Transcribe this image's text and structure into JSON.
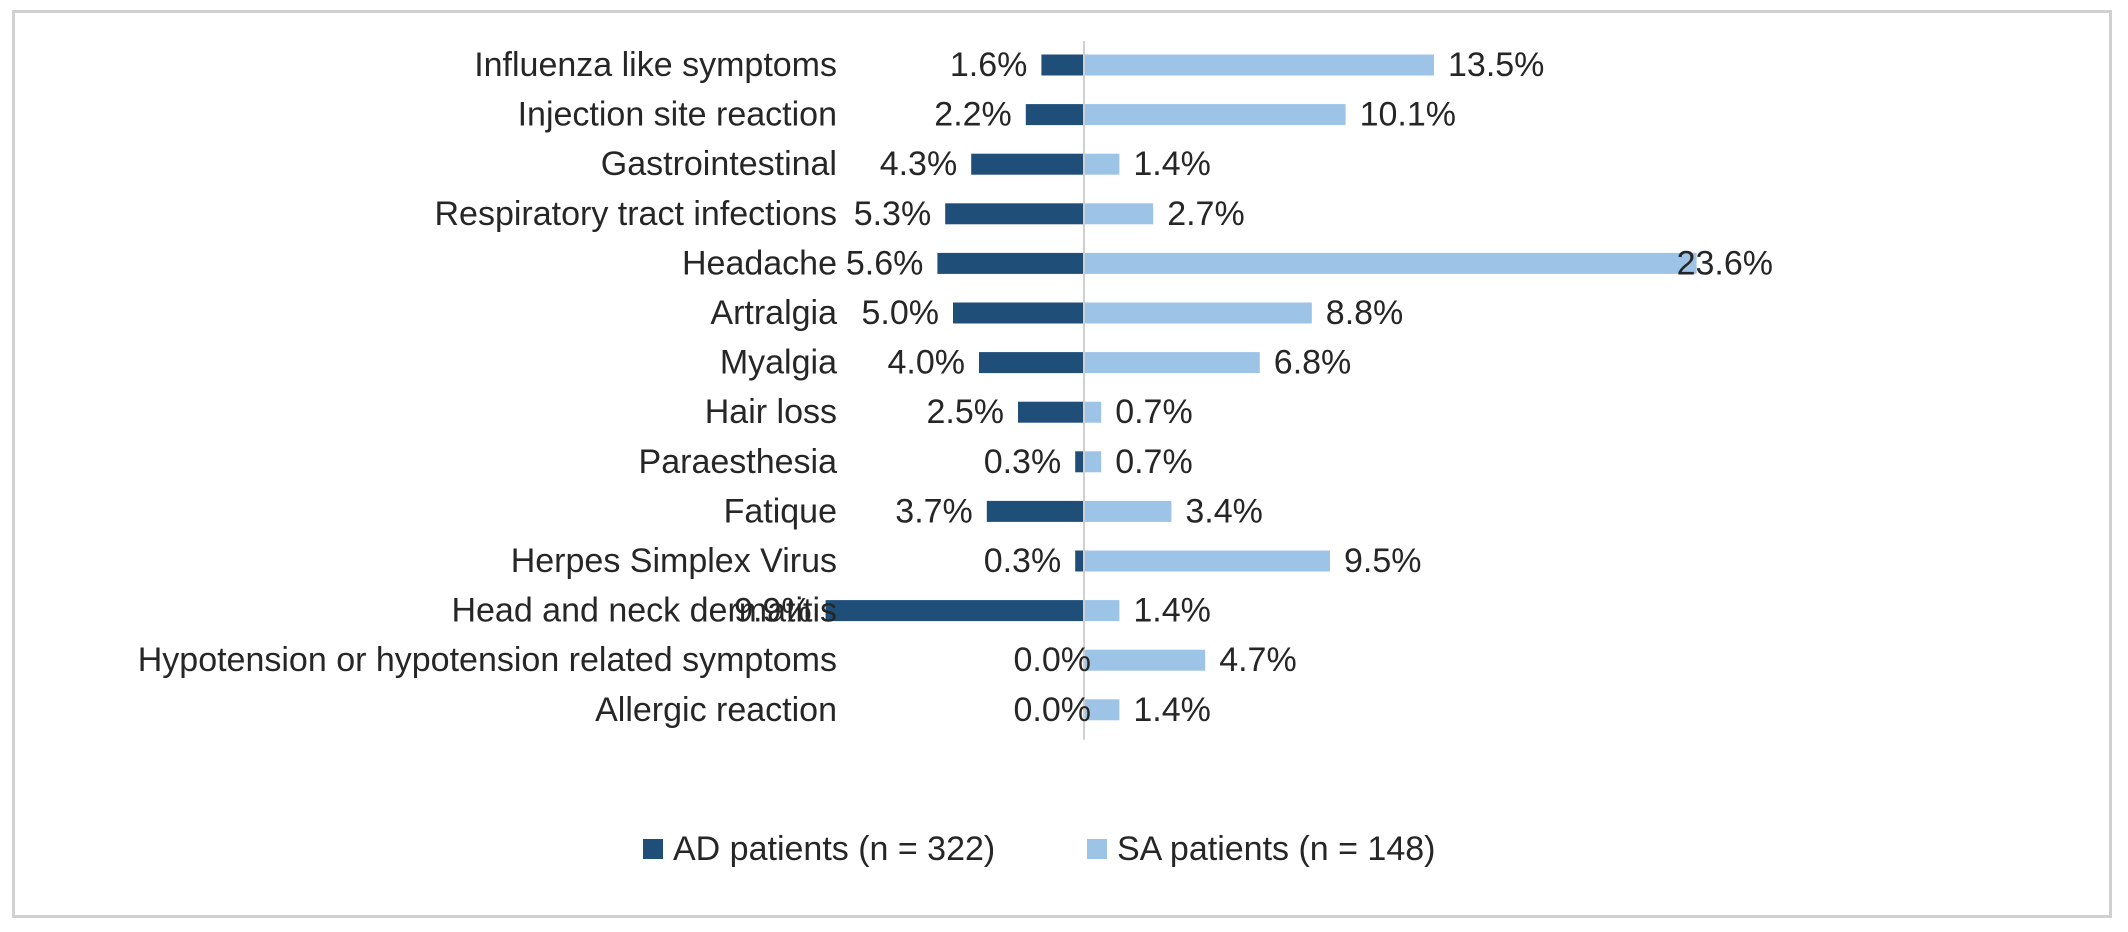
{
  "chart_data": {
    "type": "bar",
    "orientation": "horizontal-diverging",
    "categories": [
      "Influenza like symptoms",
      "Injection site reaction",
      "Gastrointestinal",
      "Respiratory tract infections",
      "Headache",
      "Artralgia",
      "Myalgia",
      "Hair loss",
      "Paraesthesia",
      "Fatique",
      "Herpes Simplex Virus",
      "Head and neck dermatitis",
      "Hypotension or hypotension related symptoms",
      "Allergic reaction"
    ],
    "series": [
      {
        "name": "AD patients (n = 322)",
        "color": "#1f4e79",
        "values": [
          1.6,
          2.2,
          4.3,
          5.3,
          5.6,
          5.0,
          4.0,
          2.5,
          0.3,
          3.7,
          0.3,
          9.9,
          0.0,
          0.0
        ],
        "labels": [
          "1.6%",
          "2.2%",
          "4.3%",
          "5.3%",
          "5.6%",
          "5.0%",
          "4.0%",
          "2.5%",
          "0.3%",
          "3.7%",
          "0.3%",
          "9.9%",
          "0.0%",
          "0.0%"
        ]
      },
      {
        "name": "SA patients (n = 148)",
        "color": "#9dc3e6",
        "values": [
          13.5,
          10.1,
          1.4,
          2.7,
          23.6,
          8.8,
          6.8,
          0.7,
          0.7,
          3.4,
          9.5,
          1.4,
          4.7,
          1.4
        ],
        "labels": [
          "13.5%",
          "10.1%",
          "1.4%",
          "2.7%",
          "23.6%",
          "8.8%",
          "6.8%",
          "0.7%",
          "0.7%",
          "3.4%",
          "9.5%",
          "1.4%",
          "4.7%",
          "1.4%"
        ]
      }
    ],
    "title": "",
    "xlabel": "",
    "ylabel": "",
    "grid": false,
    "legend_position": "bottom",
    "axis_line_color": "#d0d0d0"
  }
}
